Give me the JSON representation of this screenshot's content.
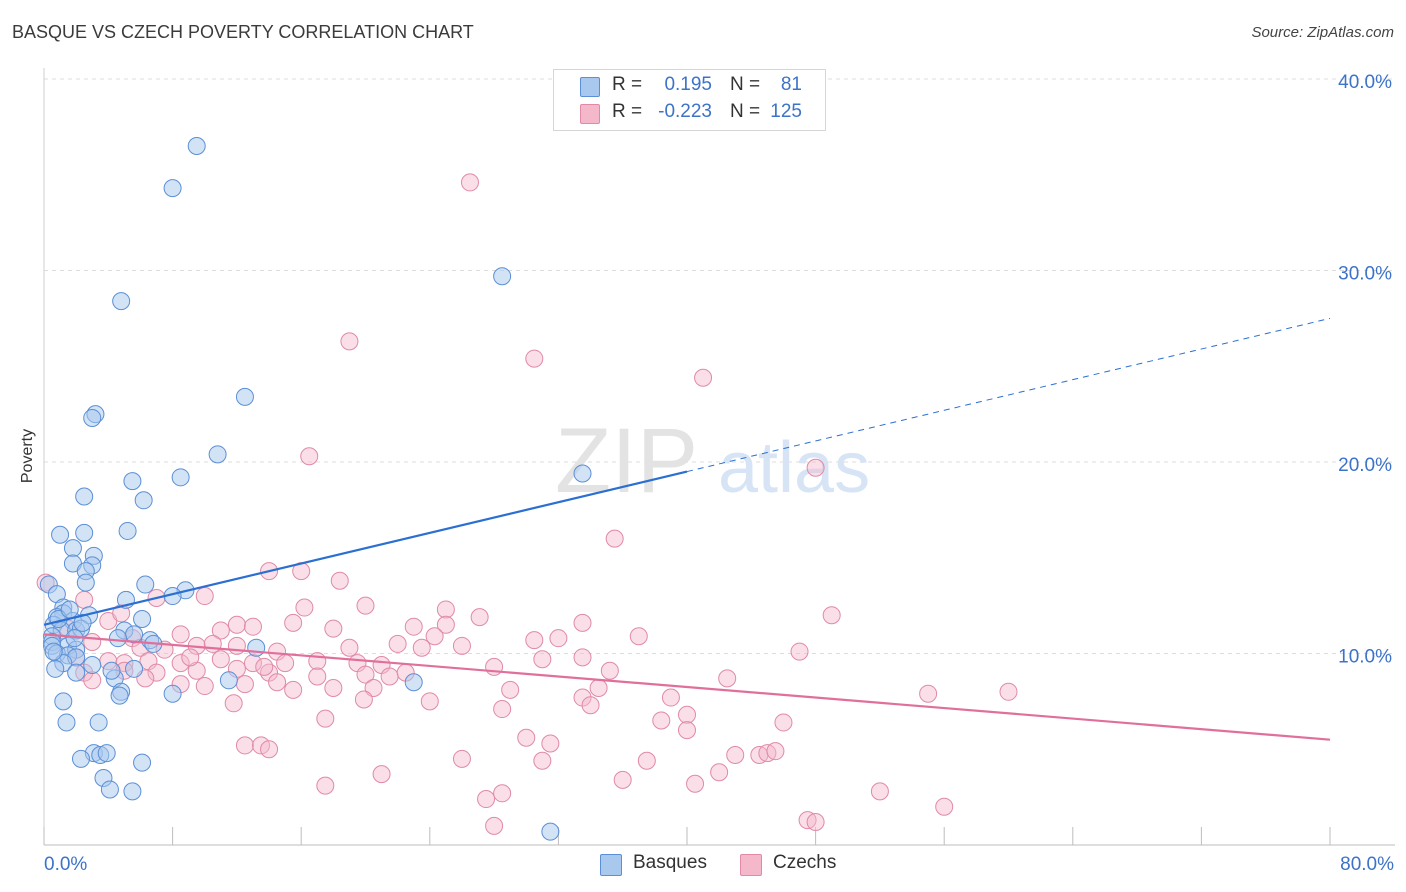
{
  "title": "BASQUE VS CZECH POVERTY CORRELATION CHART",
  "source": "Source: ZipAtlas.com",
  "watermark": {
    "zip": "ZIP",
    "atlas": "atlas"
  },
  "colors": {
    "basques_fill": "#a8c8ee",
    "basques_stroke": "#5b8fd6",
    "basques_line": "#2a6fd1",
    "czechs_fill": "#f5b8cb",
    "czechs_stroke": "#e08aa6",
    "czechs_line": "#e0709a",
    "axis_text": "#3c73c9",
    "grid": "#dddddd"
  },
  "legend_top": {
    "rows": [
      {
        "r_label": "R =",
        "r_value": "0.195",
        "n_label": "N =",
        "n_value": "81"
      },
      {
        "r_label": "R =",
        "r_value": "-0.223",
        "n_label": "N =",
        "n_value": "125"
      }
    ]
  },
  "legend_bottom": {
    "basques": "Basques",
    "czechs": "Czechs"
  },
  "chart_data": {
    "type": "scatter",
    "title": "BASQUE VS CZECH POVERTY CORRELATION CHART",
    "xlabel": "",
    "ylabel": "Poverty",
    "xlim": [
      0,
      80
    ],
    "ylim": [
      0,
      40
    ],
    "x_tick_labels": [
      "0.0%",
      "80.0%"
    ],
    "y_ticks": [
      10,
      20,
      30,
      40
    ],
    "y_tick_labels": [
      "10.0%",
      "20.0%",
      "30.0%",
      "40.0%"
    ],
    "grid": true,
    "legend_position": "bottom-center",
    "series": [
      {
        "name": "Basques",
        "r": 0.195,
        "n": 81,
        "trend": {
          "x0": 0,
          "y0": 11.5,
          "x1": 40,
          "y1": 19.5,
          "x_dashed_end": 80,
          "y_dashed_end": 27.5
        },
        "points": [
          [
            9.5,
            36.5
          ],
          [
            8,
            34.3
          ],
          [
            28.5,
            29.7
          ],
          [
            4.8,
            28.4
          ],
          [
            12.5,
            23.4
          ],
          [
            3.2,
            22.5
          ],
          [
            3,
            22.3
          ],
          [
            10.8,
            20.4
          ],
          [
            33.5,
            19.4
          ],
          [
            8.5,
            19.2
          ],
          [
            5.5,
            19
          ],
          [
            2.5,
            18.2
          ],
          [
            6.2,
            18
          ],
          [
            1,
            16.2
          ],
          [
            2.5,
            16.3
          ],
          [
            5.2,
            16.4
          ],
          [
            1.8,
            15.5
          ],
          [
            3.1,
            15.1
          ],
          [
            1.8,
            14.7
          ],
          [
            3,
            14.6
          ],
          [
            2.6,
            14.3
          ],
          [
            2.6,
            13.7
          ],
          [
            6.3,
            13.6
          ],
          [
            0.3,
            13.6
          ],
          [
            8.8,
            13.3
          ],
          [
            0.8,
            13.1
          ],
          [
            8,
            13
          ],
          [
            5.1,
            12.8
          ],
          [
            1.2,
            12.4
          ],
          [
            1.2,
            12.1
          ],
          [
            0.8,
            11.9
          ],
          [
            2.8,
            12
          ],
          [
            1.8,
            11.7
          ],
          [
            6.1,
            11.8
          ],
          [
            0.6,
            11.5
          ],
          [
            1.1,
            11.2
          ],
          [
            2,
            11.2
          ],
          [
            2.3,
            11.3
          ],
          [
            5,
            11.2
          ],
          [
            0.5,
            10.9
          ],
          [
            5.6,
            11
          ],
          [
            4.6,
            10.8
          ],
          [
            0.5,
            10.6
          ],
          [
            1.5,
            10.4
          ],
          [
            2,
            10.2
          ],
          [
            6.6,
            10.7
          ],
          [
            0.5,
            10.4
          ],
          [
            13.2,
            10.3
          ],
          [
            0.8,
            10
          ],
          [
            1.5,
            9.9
          ],
          [
            2,
            9.8
          ],
          [
            1.2,
            9.5
          ],
          [
            3,
            9.4
          ],
          [
            0.7,
            9.2
          ],
          [
            5.6,
            9.2
          ],
          [
            4.4,
            8.7
          ],
          [
            11.5,
            8.6
          ],
          [
            23,
            8.5
          ],
          [
            2,
            9
          ],
          [
            4.8,
            8
          ],
          [
            8,
            7.9
          ],
          [
            4.7,
            7.8
          ],
          [
            1.2,
            7.5
          ],
          [
            1.4,
            6.4
          ],
          [
            3.4,
            6.4
          ],
          [
            3.1,
            4.8
          ],
          [
            3.5,
            4.7
          ],
          [
            3.9,
            4.8
          ],
          [
            6.1,
            4.3
          ],
          [
            2.3,
            4.5
          ],
          [
            3.7,
            3.5
          ],
          [
            4.1,
            2.9
          ],
          [
            5.5,
            2.8
          ],
          [
            31.5,
            0.7
          ],
          [
            0.6,
            10.1
          ],
          [
            1.9,
            10.8
          ],
          [
            2.4,
            11.6
          ],
          [
            4.2,
            9.1
          ],
          [
            6.8,
            10.5
          ],
          [
            0.9,
            11.8
          ],
          [
            1.6,
            12.3
          ]
        ]
      },
      {
        "name": "Czechs",
        "r": -0.223,
        "n": 125,
        "trend": {
          "x0": 0,
          "y0": 11,
          "x1": 80,
          "y1": 5.5
        },
        "points": [
          [
            26.5,
            34.6
          ],
          [
            19,
            26.3
          ],
          [
            30.5,
            25.4
          ],
          [
            41,
            24.4
          ],
          [
            16.5,
            20.3
          ],
          [
            48,
            19.7
          ],
          [
            35.5,
            16
          ],
          [
            14,
            14.3
          ],
          [
            16,
            14.3
          ],
          [
            18.4,
            13.8
          ],
          [
            0.1,
            13.7
          ],
          [
            10,
            13
          ],
          [
            2.5,
            12.8
          ],
          [
            7,
            12.9
          ],
          [
            20,
            12.5
          ],
          [
            25,
            12.3
          ],
          [
            12,
            11.5
          ],
          [
            15.5,
            11.6
          ],
          [
            33.5,
            11.6
          ],
          [
            49,
            12
          ],
          [
            4,
            11.7
          ],
          [
            1.5,
            11.3
          ],
          [
            5.5,
            10.8
          ],
          [
            8.5,
            11
          ],
          [
            11,
            11.2
          ],
          [
            13,
            11.4
          ],
          [
            18,
            11.3
          ],
          [
            23,
            11.4
          ],
          [
            25,
            11.5
          ],
          [
            30.5,
            10.7
          ],
          [
            32,
            10.8
          ],
          [
            37,
            10.9
          ],
          [
            3,
            10.6
          ],
          [
            6,
            10.3
          ],
          [
            7.5,
            10.2
          ],
          [
            9.5,
            10.4
          ],
          [
            10.5,
            10.5
          ],
          [
            12,
            10.4
          ],
          [
            14.5,
            10.1
          ],
          [
            19,
            10.3
          ],
          [
            22,
            10.5
          ],
          [
            23.5,
            10.3
          ],
          [
            26,
            10.4
          ],
          [
            47,
            10.1
          ],
          [
            2,
            9.8
          ],
          [
            4,
            9.6
          ],
          [
            5,
            9.5
          ],
          [
            6.5,
            9.6
          ],
          [
            8.5,
            9.5
          ],
          [
            11,
            9.7
          ],
          [
            13,
            9.5
          ],
          [
            15,
            9.5
          ],
          [
            17,
            9.6
          ],
          [
            19.5,
            9.5
          ],
          [
            21,
            9.4
          ],
          [
            28,
            9.3
          ],
          [
            31,
            9.7
          ],
          [
            33.5,
            9.8
          ],
          [
            2.5,
            9
          ],
          [
            5,
            9.1
          ],
          [
            7,
            9
          ],
          [
            9.5,
            9.1
          ],
          [
            12,
            9.2
          ],
          [
            14,
            9
          ],
          [
            17,
            8.8
          ],
          [
            20,
            8.9
          ],
          [
            21.5,
            8.8
          ],
          [
            22.5,
            9
          ],
          [
            42.5,
            8.7
          ],
          [
            3,
            8.6
          ],
          [
            8.5,
            8.4
          ],
          [
            10,
            8.3
          ],
          [
            12.5,
            8.4
          ],
          [
            14.5,
            8.5
          ],
          [
            15.5,
            8.1
          ],
          [
            18,
            8.2
          ],
          [
            20.5,
            8.2
          ],
          [
            29,
            8.1
          ],
          [
            34.5,
            8.2
          ],
          [
            55,
            7.9
          ],
          [
            60,
            8
          ],
          [
            33.5,
            7.7
          ],
          [
            39,
            7.7
          ],
          [
            24,
            7.5
          ],
          [
            34,
            7.3
          ],
          [
            28.5,
            7.1
          ],
          [
            17.5,
            6.6
          ],
          [
            40,
            6.8
          ],
          [
            46,
            6.4
          ],
          [
            40,
            6
          ],
          [
            30,
            5.6
          ],
          [
            12.5,
            5.2
          ],
          [
            13.5,
            5.2
          ],
          [
            14,
            5
          ],
          [
            31.5,
            5.3
          ],
          [
            43,
            4.7
          ],
          [
            44.5,
            4.7
          ],
          [
            45,
            4.8
          ],
          [
            45.5,
            4.9
          ],
          [
            26,
            4.5
          ],
          [
            31,
            4.4
          ],
          [
            37.5,
            4.4
          ],
          [
            21,
            3.7
          ],
          [
            42,
            3.8
          ],
          [
            36,
            3.4
          ],
          [
            40.5,
            3.2
          ],
          [
            17.5,
            3.1
          ],
          [
            28.5,
            2.7
          ],
          [
            27.5,
            2.4
          ],
          [
            52,
            2.8
          ],
          [
            56,
            2
          ],
          [
            47.5,
            1.3
          ],
          [
            48,
            1.2
          ],
          [
            28,
            1
          ],
          [
            4.8,
            12.1
          ],
          [
            9.1,
            9.8
          ],
          [
            16.2,
            12.4
          ],
          [
            24.3,
            10.9
          ],
          [
            35.2,
            9.1
          ],
          [
            6.3,
            8.7
          ],
          [
            13.7,
            9.3
          ],
          [
            19.9,
            7.6
          ],
          [
            27.1,
            11.9
          ],
          [
            38.4,
            6.5
          ],
          [
            11.8,
            7.4
          ]
        ]
      }
    ]
  }
}
